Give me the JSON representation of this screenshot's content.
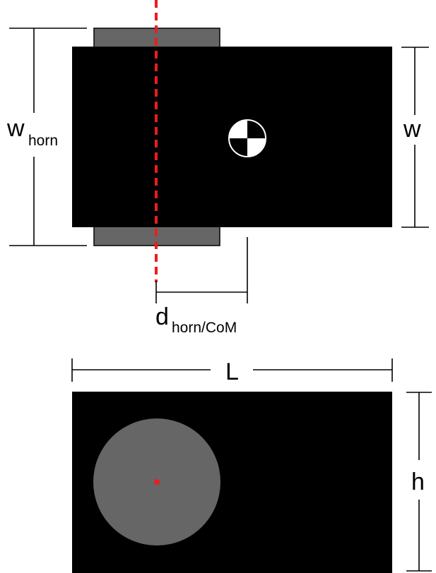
{
  "colors": {
    "background": "#ffffff",
    "body": "#000000",
    "horn": "#666666",
    "wheel": "#666666",
    "axis": "#ee1c1c",
    "dimension": "#000000",
    "com_light": "#ffffff",
    "com_dark": "#000000"
  },
  "labels": {
    "w_horn_main": "w",
    "w_horn_sub": "horn",
    "w": "w",
    "d_main": "d",
    "d_sub": "horn/CoM",
    "L": "L",
    "h": "h"
  },
  "icons": {
    "center_of_mass": "center-of-mass-icon",
    "wheel_axle": "axle-dot"
  }
}
